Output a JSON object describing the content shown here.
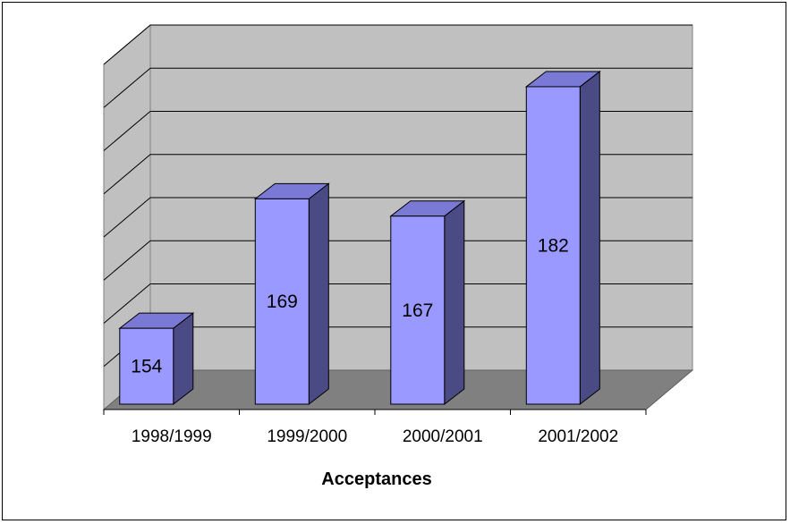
{
  "chart_data": {
    "type": "bar",
    "style": "3d-column",
    "categories": [
      "1998/1999",
      "1999/2000",
      "2000/2001",
      "2001/2002"
    ],
    "series": [
      {
        "values": [
          154,
          169,
          167,
          182
        ]
      }
    ],
    "title": "",
    "xlabel": "Acceptances",
    "ylabel": "",
    "ylim": [
      145,
      185
    ],
    "grid": true,
    "legend": "none",
    "colors": {
      "bar_front": "#9999ff",
      "bar_top": "#7a7ad6",
      "bar_side": "#4a4a85",
      "wall": "#c0c0c0",
      "floor": "#808080",
      "gridline": "#000000"
    }
  }
}
